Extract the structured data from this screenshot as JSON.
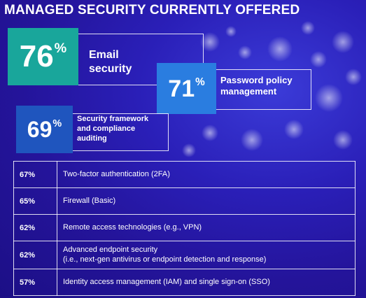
{
  "title": "MANAGED SECURITY CURRENTLY OFFERED",
  "highlights": [
    {
      "value": "76",
      "unit": "%",
      "label_lines": [
        "Email",
        "security"
      ],
      "color": "#19a69b"
    },
    {
      "value": "71",
      "unit": "%",
      "label_lines": [
        "Password policy",
        "management"
      ],
      "color": "#2a7de0"
    },
    {
      "value": "69",
      "unit": "%",
      "label_lines": [
        "Security framework",
        "and compliance",
        "auditing"
      ],
      "color": "#1f55be"
    }
  ],
  "table_rows": [
    {
      "pct": "67%",
      "lines": [
        "Two-factor authentication (2FA)"
      ]
    },
    {
      "pct": "65%",
      "lines": [
        "Firewall (Basic)"
      ]
    },
    {
      "pct": "62%",
      "lines": [
        "Remote access technologies (e.g., VPN)"
      ]
    },
    {
      "pct": "62%",
      "lines": [
        "Advanced endpoint security",
        "(i.e., next-gen antivirus or endpoint detection and response)"
      ]
    },
    {
      "pct": "57%",
      "lines": [
        "Identity access management (IAM) and single sign-on (SSO)"
      ]
    }
  ]
}
